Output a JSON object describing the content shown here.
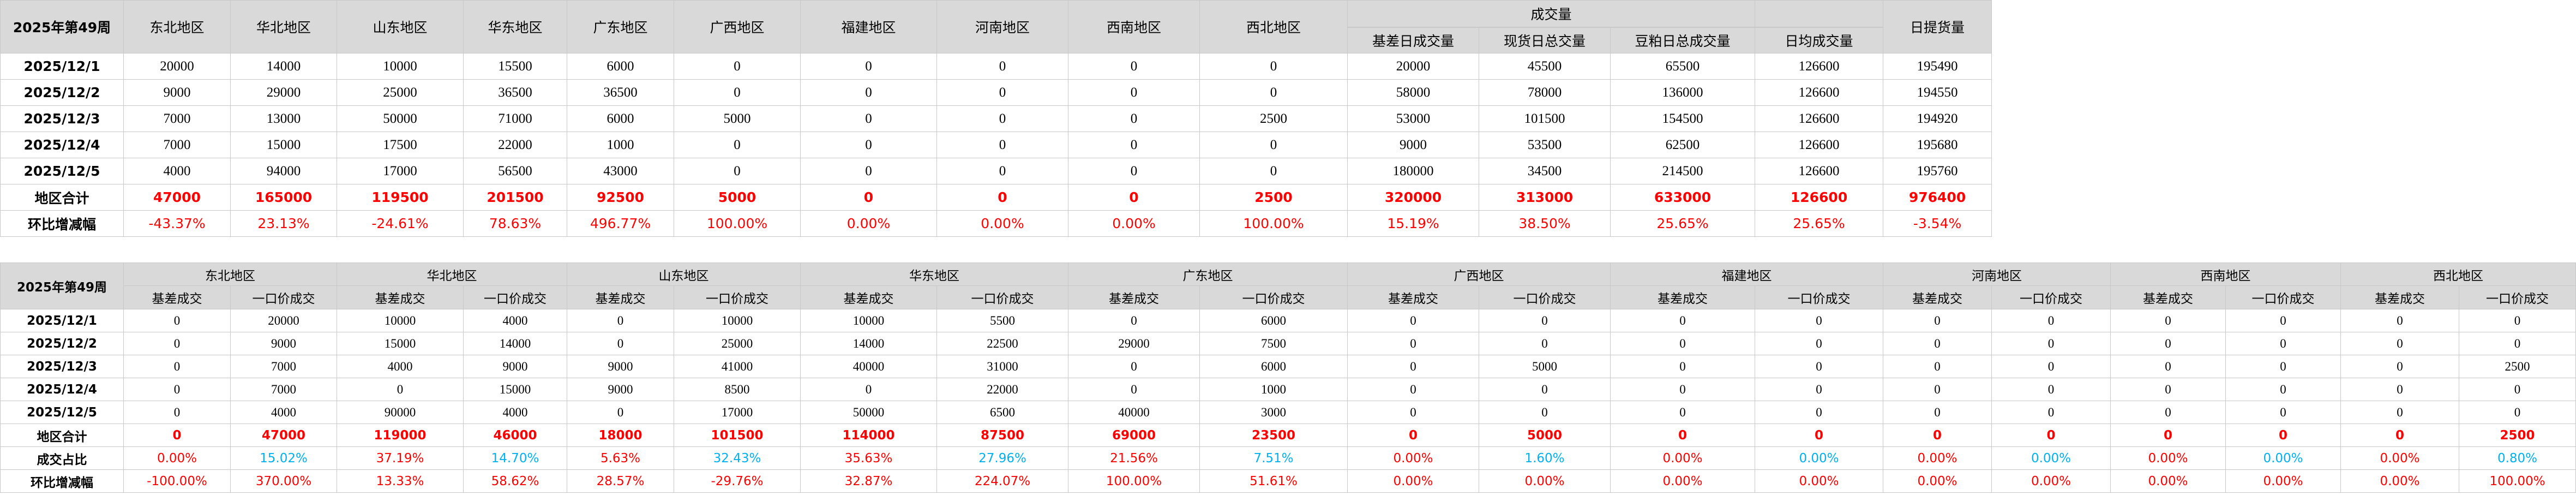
{
  "colors": {
    "header_bg": "#d9d9d9",
    "total_red": "#ff0000",
    "share_cyan": "#00b0f0"
  },
  "summary_table": {
    "corner": "2025年第49周",
    "regions": [
      "东北地区",
      "华北地区",
      "山东地区",
      "华东地区",
      "广东地区",
      "广西地区",
      "福建地区",
      "河南地区",
      "西南地区",
      "西北地区"
    ],
    "volume_group": "成交量",
    "volume_cols": [
      "基差日成交量",
      "现货日总交量",
      "豆粕日总成交量",
      "日均成交量"
    ],
    "delivery_col": "日提货量",
    "rows": [
      {
        "label": "2025/12/1",
        "values": [
          "20000",
          "14000",
          "10000",
          "15500",
          "6000",
          "0",
          "0",
          "0",
          "0",
          "0",
          "20000",
          "45500",
          "65500",
          "126600",
          "195490"
        ]
      },
      {
        "label": "2025/12/2",
        "values": [
          "9000",
          "29000",
          "25000",
          "36500",
          "36500",
          "0",
          "0",
          "0",
          "0",
          "0",
          "58000",
          "78000",
          "136000",
          "126600",
          "194550"
        ]
      },
      {
        "label": "2025/12/3",
        "values": [
          "7000",
          "13000",
          "50000",
          "71000",
          "6000",
          "5000",
          "0",
          "0",
          "0",
          "2500",
          "53000",
          "101500",
          "154500",
          "126600",
          "194920"
        ]
      },
      {
        "label": "2025/12/4",
        "values": [
          "7000",
          "15000",
          "17500",
          "22000",
          "1000",
          "0",
          "0",
          "0",
          "0",
          "0",
          "9000",
          "53500",
          "62500",
          "126600",
          "195680"
        ]
      },
      {
        "label": "2025/12/5",
        "values": [
          "4000",
          "94000",
          "17000",
          "56500",
          "43000",
          "0",
          "0",
          "0",
          "0",
          "0",
          "180000",
          "34500",
          "214500",
          "126600",
          "195760"
        ]
      }
    ],
    "total": {
      "label": "地区合计",
      "values": [
        "47000",
        "165000",
        "119500",
        "201500",
        "92500",
        "5000",
        "0",
        "0",
        "0",
        "2500",
        "320000",
        "313000",
        "633000",
        "126600",
        "976400"
      ]
    },
    "change": {
      "label": "环比增减幅",
      "values": [
        "-43.37%",
        "23.13%",
        "-24.61%",
        "78.63%",
        "496.77%",
        "100.00%",
        "0.00%",
        "0.00%",
        "0.00%",
        "100.00%",
        "15.19%",
        "38.50%",
        "25.65%",
        "25.65%",
        "-3.54%"
      ]
    }
  },
  "detail_table": {
    "corner": "2025年第49周",
    "regions": [
      "东北地区",
      "华北地区",
      "山东地区",
      "华东地区",
      "广东地区",
      "广西地区",
      "福建地区",
      "河南地区",
      "西南地区",
      "西北地区"
    ],
    "sub_labels": [
      "基差成交",
      "一口价成交"
    ],
    "rows": [
      {
        "label": "2025/12/1",
        "values": [
          "0",
          "20000",
          "10000",
          "4000",
          "0",
          "10000",
          "10000",
          "5500",
          "0",
          "6000",
          "0",
          "0",
          "0",
          "0",
          "0",
          "0",
          "0",
          "0",
          "0",
          "0"
        ]
      },
      {
        "label": "2025/12/2",
        "values": [
          "0",
          "9000",
          "15000",
          "14000",
          "0",
          "25000",
          "14000",
          "22500",
          "29000",
          "7500",
          "0",
          "0",
          "0",
          "0",
          "0",
          "0",
          "0",
          "0",
          "0",
          "0"
        ]
      },
      {
        "label": "2025/12/3",
        "values": [
          "0",
          "7000",
          "4000",
          "9000",
          "9000",
          "41000",
          "40000",
          "31000",
          "0",
          "6000",
          "0",
          "5000",
          "0",
          "0",
          "0",
          "0",
          "0",
          "0",
          "0",
          "2500"
        ]
      },
      {
        "label": "2025/12/4",
        "values": [
          "0",
          "7000",
          "0",
          "15000",
          "9000",
          "8500",
          "0",
          "22000",
          "0",
          "1000",
          "0",
          "0",
          "0",
          "0",
          "0",
          "0",
          "0",
          "0",
          "0",
          "0"
        ]
      },
      {
        "label": "2025/12/5",
        "values": [
          "0",
          "4000",
          "90000",
          "4000",
          "0",
          "17000",
          "50000",
          "6500",
          "40000",
          "3000",
          "0",
          "0",
          "0",
          "0",
          "0",
          "0",
          "0",
          "0",
          "0",
          "0"
        ]
      }
    ],
    "total": {
      "label": "地区合计",
      "values": [
        "0",
        "47000",
        "119000",
        "46000",
        "18000",
        "101500",
        "114000",
        "87500",
        "69000",
        "23500",
        "0",
        "5000",
        "0",
        "0",
        "0",
        "0",
        "0",
        "0",
        "0",
        "2500"
      ]
    },
    "share": {
      "label": "成交占比",
      "values": [
        "0.00%",
        "15.02%",
        "37.19%",
        "14.70%",
        "5.63%",
        "32.43%",
        "35.63%",
        "27.96%",
        "21.56%",
        "7.51%",
        "0.00%",
        "1.60%",
        "0.00%",
        "0.00%",
        "0.00%",
        "0.00%",
        "0.00%",
        "0.00%",
        "0.00%",
        "0.80%"
      ]
    },
    "change": {
      "label": "环比增减幅",
      "values": [
        "-100.00%",
        "370.00%",
        "13.33%",
        "58.62%",
        "28.57%",
        "-29.76%",
        "32.87%",
        "224.07%",
        "100.00%",
        "51.61%",
        "0.00%",
        "0.00%",
        "0.00%",
        "0.00%",
        "0.00%",
        "0.00%",
        "0.00%",
        "0.00%",
        "0.00%",
        "100.00%"
      ]
    }
  }
}
